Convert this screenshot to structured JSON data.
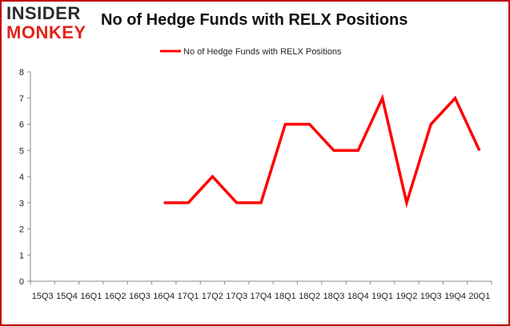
{
  "logo": {
    "line1": "INSIDER",
    "line2": "MONKEY",
    "line1_color": "#2b2b2b",
    "line2_color": "#e2231a"
  },
  "chart_data": {
    "type": "line",
    "title": "No of Hedge Funds with RELX Positions",
    "xlabel": "",
    "ylabel": "",
    "categories": [
      "15Q3",
      "15Q4",
      "16Q1",
      "16Q2",
      "16Q3",
      "16Q4",
      "17Q1",
      "17Q2",
      "17Q3",
      "17Q4",
      "18Q1",
      "18Q2",
      "18Q3",
      "18Q4",
      "19Q1",
      "19Q2",
      "19Q3",
      "19Q4",
      "20Q1"
    ],
    "series": [
      {
        "name": "No of Hedge Funds with RELX Positions",
        "color": "#ff0000",
        "values": [
          null,
          null,
          null,
          null,
          null,
          3,
          3,
          4,
          3,
          3,
          6,
          6,
          5,
          5,
          7,
          3,
          6,
          7,
          5
        ]
      }
    ],
    "ylim": [
      0,
      8
    ],
    "yticks": [
      0,
      1,
      2,
      3,
      4,
      5,
      6,
      7,
      8
    ],
    "grid": false,
    "legend": "top-center",
    "border_color": "#c00000"
  }
}
